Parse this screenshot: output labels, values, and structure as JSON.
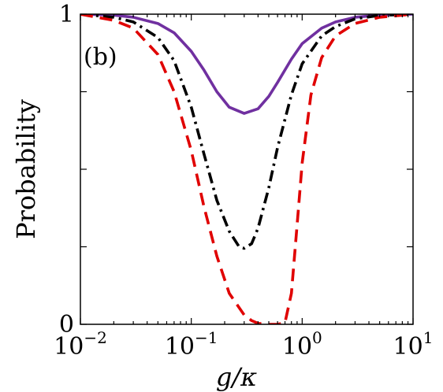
{
  "chart_data": {
    "type": "line",
    "panel_label": "(b)",
    "xlabel": "g/κ",
    "ylabel": "Probability",
    "xscale": "log",
    "xlim": [
      0.01,
      10
    ],
    "ylim": [
      0,
      1
    ],
    "x_ticks": [
      {
        "value": 0.01,
        "base": "10",
        "exp": "−2"
      },
      {
        "value": 0.1,
        "base": "10",
        "exp": "−1"
      },
      {
        "value": 1,
        "base": "10",
        "exp": "0"
      },
      {
        "value": 10,
        "base": "10",
        "exp": "1"
      }
    ],
    "y_tick_labels": [
      {
        "value": 0,
        "text": "0"
      },
      {
        "value": 1,
        "text": "1"
      }
    ],
    "y_minor_ticks": [
      0.25,
      0.5,
      0.75
    ],
    "series": [
      {
        "style": "solid",
        "color": "#7030a0",
        "x": [
          0.01,
          0.02,
          0.03,
          0.05,
          0.07,
          0.1,
          0.13,
          0.17,
          0.22,
          0.3,
          0.4,
          0.5,
          0.6,
          0.8,
          1.0,
          1.5,
          2.0,
          3.0,
          5.0,
          10.0
        ],
        "y": [
          1.0,
          0.997,
          0.99,
          0.97,
          0.94,
          0.88,
          0.82,
          0.75,
          0.7,
          0.68,
          0.695,
          0.735,
          0.78,
          0.855,
          0.905,
          0.955,
          0.975,
          0.99,
          0.997,
          1.0
        ]
      },
      {
        "style": "dashdot",
        "color": "#000000",
        "x": [
          0.01,
          0.02,
          0.03,
          0.05,
          0.07,
          0.1,
          0.13,
          0.17,
          0.22,
          0.27,
          0.3,
          0.35,
          0.4,
          0.5,
          0.6,
          0.8,
          1.0,
          1.5,
          2.0,
          3.0,
          5.0,
          10.0
        ],
        "y": [
          1.0,
          0.99,
          0.975,
          0.925,
          0.85,
          0.7,
          0.55,
          0.4,
          0.3,
          0.25,
          0.245,
          0.26,
          0.31,
          0.44,
          0.57,
          0.74,
          0.84,
          0.93,
          0.96,
          0.985,
          0.996,
          1.0
        ]
      },
      {
        "style": "dashed",
        "color": "#e00000",
        "x": [
          0.01,
          0.02,
          0.03,
          0.05,
          0.07,
          0.1,
          0.13,
          0.17,
          0.22,
          0.3,
          0.35,
          0.4,
          0.5,
          0.6,
          0.7,
          0.8,
          0.9,
          1.0,
          1.2,
          1.5,
          2.0,
          3.0,
          5.0,
          10.0
        ],
        "y": [
          1.0,
          0.98,
          0.955,
          0.87,
          0.75,
          0.56,
          0.38,
          0.22,
          0.1,
          0.03,
          0.012,
          0.003,
          0.0,
          0.0,
          0.005,
          0.1,
          0.32,
          0.52,
          0.74,
          0.86,
          0.93,
          0.97,
          0.99,
          1.0
        ]
      }
    ]
  }
}
